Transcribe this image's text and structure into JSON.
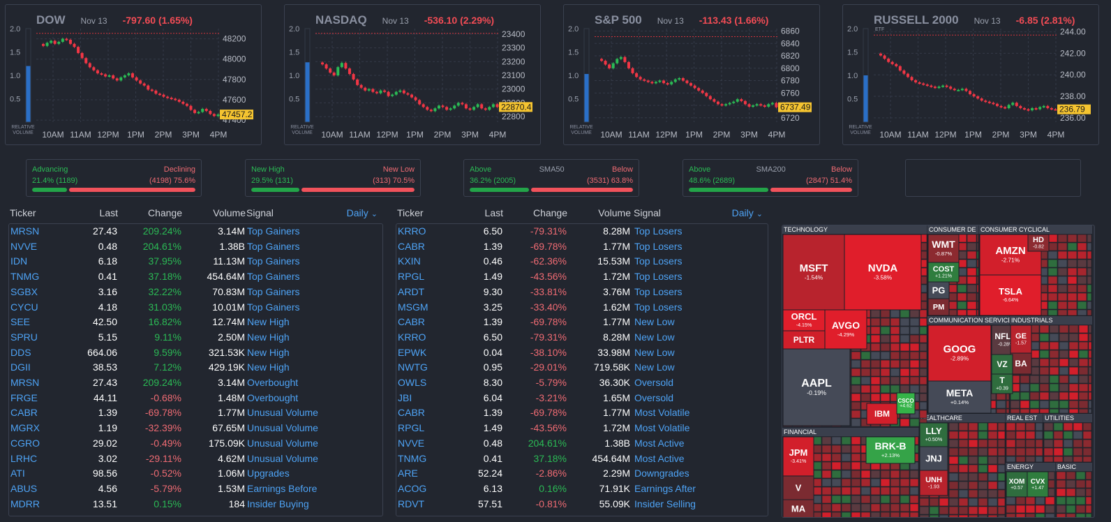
{
  "indices": [
    {
      "name": "DOW",
      "date": "Nov 13",
      "change": "-797.60 (1.65%)",
      "price_label": "47457.2",
      "etf": "",
      "y_ticks": [
        "48200",
        "48000",
        "47800",
        "47600",
        "47400"
      ],
      "rv_ticks": [
        "2.0",
        "1.5",
        "1.0",
        "0.5"
      ],
      "x_ticks": [
        "10AM",
        "11AM",
        "12PM",
        "1PM",
        "2PM",
        "3PM",
        "4PM"
      ],
      "rel_volume": "RELATIVE VOLUME",
      "ref_value": 48254,
      "rel_volume_value": 1.2,
      "range": [
        47380,
        48300
      ],
      "series": [
        48130,
        48160,
        48180,
        48150,
        48170,
        48200,
        48190,
        48150,
        48120,
        48060,
        48010,
        47960,
        47920,
        47890,
        47860,
        47850,
        47830,
        47840,
        47810,
        47790,
        47820,
        47840,
        47860,
        47820,
        47790,
        47760,
        47740,
        47700,
        47690,
        47660,
        47650,
        47630,
        47620,
        47610,
        47600,
        47580,
        47560,
        47540,
        47500,
        47470,
        47480,
        47510,
        47490,
        47460,
        47440,
        47455
      ]
    },
    {
      "name": "NASDAQ",
      "date": "Nov 13",
      "change": "-536.10 (2.29%)",
      "price_label": "22870.4",
      "etf": "",
      "y_ticks": [
        "23400",
        "23300",
        "23200",
        "23100",
        "23000",
        "22900",
        "22800"
      ],
      "rv_ticks": [
        "2.0",
        "1.5",
        "1.0",
        "0.5"
      ],
      "x_ticks": [
        "10AM",
        "11AM",
        "12PM",
        "1PM",
        "2PM",
        "3PM",
        "4PM"
      ],
      "rel_volume": "RELATIVE VOLUME",
      "ref_value": 23406,
      "rel_volume_value": 1.28,
      "range": [
        22760,
        23440
      ],
      "series": [
        23180,
        23150,
        23120,
        23100,
        23160,
        23190,
        23150,
        23110,
        23070,
        23030,
        23010,
        22990,
        23000,
        22980,
        22970,
        22990,
        22980,
        22950,
        22960,
        22980,
        22990,
        22970,
        22960,
        22940,
        22920,
        22890,
        22870,
        22850,
        22840,
        22860,
        22880,
        22870,
        22850,
        22860,
        22880,
        22900,
        22890,
        22860,
        22850,
        22870,
        22890,
        22860,
        22850,
        22870,
        22890,
        22870
      ]
    },
    {
      "name": "S&P 500",
      "date": "Nov 13",
      "change": "-113.43 (1.66%)",
      "price_label": "6737.49",
      "etf": "",
      "y_ticks": [
        "6860",
        "6840",
        "6820",
        "6800",
        "6780",
        "6760",
        "6740",
        "6720"
      ],
      "rv_ticks": [
        "2.0",
        "1.5",
        "1.0",
        "0.5"
      ],
      "x_ticks": [
        "10AM",
        "11AM",
        "12PM",
        "1PM",
        "2PM",
        "3PM",
        "4PM"
      ],
      "rel_volume": "RELATIVE VOLUME",
      "ref_value": 6851,
      "rel_volume_value": 1.03,
      "range": [
        6713,
        6864
      ],
      "series": [
        6812,
        6806,
        6800,
        6808,
        6815,
        6818,
        6810,
        6800,
        6792,
        6786,
        6782,
        6780,
        6778,
        6776,
        6778,
        6780,
        6776,
        6774,
        6778,
        6782,
        6784,
        6780,
        6776,
        6772,
        6768,
        6764,
        6760,
        6755,
        6750,
        6746,
        6742,
        6740,
        6742,
        6744,
        6746,
        6750,
        6747,
        6742,
        6738,
        6740,
        6742,
        6740,
        6738,
        6742,
        6744,
        6737
      ]
    },
    {
      "name": "RUSSELL 2000",
      "date": "Nov 13",
      "change": "-6.85 (2.81%)",
      "price_label": "236.79",
      "etf": "ETF",
      "y_ticks": [
        "244.00",
        "242.00",
        "240.00",
        "238.00",
        "236.00"
      ],
      "rv_ticks": [
        "2.0",
        "1.5",
        "1.0",
        "0.5"
      ],
      "x_ticks": [
        "10AM",
        "11AM",
        "12PM",
        "1PM",
        "2PM",
        "3PM",
        "4PM"
      ],
      "rel_volume": "RELATIVE VOLUME",
      "ref_value": 243.7,
      "rel_volume_value": 1.0,
      "range": [
        235.6,
        244.3
      ],
      "series": [
        241.8,
        241.5,
        241.2,
        241.0,
        240.8,
        240.4,
        240.1,
        239.8,
        239.5,
        239.3,
        239.2,
        239.1,
        239.0,
        238.9,
        238.8,
        238.9,
        239.0,
        238.9,
        238.7,
        238.6,
        238.6,
        238.7,
        238.5,
        238.2,
        238.0,
        237.8,
        237.6,
        237.5,
        237.4,
        237.3,
        237.1,
        237.0,
        236.9,
        237.2,
        237.4,
        237.1,
        236.9,
        236.8,
        236.7,
        236.9,
        236.8,
        237.0,
        237.1,
        236.9,
        236.8,
        236.79
      ]
    }
  ],
  "breadth": [
    {
      "left_label": "Advancing",
      "mid_label": "",
      "right_label": "Declining",
      "left_value": "21.4% (1189)",
      "right_value": "(4198) 75.6%",
      "pct": 21.4
    },
    {
      "left_label": "New High",
      "mid_label": "",
      "right_label": "New Low",
      "left_value": "29.5% (131)",
      "right_value": "(313) 70.5%",
      "pct": 29.5
    },
    {
      "left_label": "Above",
      "mid_label": "SMA50",
      "right_label": "Below",
      "left_value": "36.2% (2005)",
      "right_value": "(3531) 63.8%",
      "pct": 36.2
    },
    {
      "left_label": "Above",
      "mid_label": "SMA200",
      "right_label": "Below",
      "left_value": "48.6% (2689)",
      "right_value": "(2847) 51.4%",
      "pct": 48.6
    }
  ],
  "table_headers": {
    "ticker": "Ticker",
    "last": "Last",
    "change": "Change",
    "volume": "Volume",
    "signal": "Signal",
    "period": "Daily"
  },
  "left_table": [
    {
      "ticker": "MRSN",
      "last": "27.43",
      "change": "209.24%",
      "volume": "3.14M",
      "signal": "Top Gainers",
      "up": true
    },
    {
      "ticker": "NVVE",
      "last": "0.48",
      "change": "204.61%",
      "volume": "1.38B",
      "signal": "Top Gainers",
      "up": true
    },
    {
      "ticker": "IDN",
      "last": "6.18",
      "change": "37.95%",
      "volume": "11.13M",
      "signal": "Top Gainers",
      "up": true
    },
    {
      "ticker": "TNMG",
      "last": "0.41",
      "change": "37.18%",
      "volume": "454.64M",
      "signal": "Top Gainers",
      "up": true
    },
    {
      "ticker": "SGBX",
      "last": "3.16",
      "change": "32.22%",
      "volume": "70.83M",
      "signal": "Top Gainers",
      "up": true
    },
    {
      "ticker": "CYCU",
      "last": "4.18",
      "change": "31.03%",
      "volume": "10.01M",
      "signal": "Top Gainers",
      "up": true
    },
    {
      "ticker": "SEE",
      "last": "42.50",
      "change": "16.82%",
      "volume": "12.74M",
      "signal": "New High",
      "up": true
    },
    {
      "ticker": "SPRU",
      "last": "5.15",
      "change": "9.11%",
      "volume": "2.50M",
      "signal": "New High",
      "up": true
    },
    {
      "ticker": "DDS",
      "last": "664.06",
      "change": "9.59%",
      "volume": "321.53K",
      "signal": "New High",
      "up": true
    },
    {
      "ticker": "DGII",
      "last": "38.53",
      "change": "7.12%",
      "volume": "429.19K",
      "signal": "New High",
      "up": true
    },
    {
      "ticker": "MRSN",
      "last": "27.43",
      "change": "209.24%",
      "volume": "3.14M",
      "signal": "Overbought",
      "up": true
    },
    {
      "ticker": "FRGE",
      "last": "44.11",
      "change": "-0.68%",
      "volume": "1.48M",
      "signal": "Overbought",
      "up": false
    },
    {
      "ticker": "CABR",
      "last": "1.39",
      "change": "-69.78%",
      "volume": "1.77M",
      "signal": "Unusual Volume",
      "up": false
    },
    {
      "ticker": "MGRX",
      "last": "1.19",
      "change": "-32.39%",
      "volume": "67.65M",
      "signal": "Unusual Volume",
      "up": false
    },
    {
      "ticker": "CGRO",
      "last": "29.02",
      "change": "-0.49%",
      "volume": "175.09K",
      "signal": "Unusual Volume",
      "up": false
    },
    {
      "ticker": "LRHC",
      "last": "3.02",
      "change": "-29.11%",
      "volume": "4.62M",
      "signal": "Unusual Volume",
      "up": false
    },
    {
      "ticker": "ATI",
      "last": "98.56",
      "change": "-0.52%",
      "volume": "1.06M",
      "signal": "Upgrades",
      "up": false
    },
    {
      "ticker": "ABUS",
      "last": "4.56",
      "change": "-5.79%",
      "volume": "1.53M",
      "signal": "Earnings Before",
      "up": false
    },
    {
      "ticker": "MDRR",
      "last": "13.51",
      "change": "0.15%",
      "volume": "184",
      "signal": "Insider Buying",
      "up": true
    }
  ],
  "right_table": [
    {
      "ticker": "KRRO",
      "last": "6.50",
      "change": "-79.31%",
      "volume": "8.28M",
      "signal": "Top Losers",
      "up": false
    },
    {
      "ticker": "CABR",
      "last": "1.39",
      "change": "-69.78%",
      "volume": "1.77M",
      "signal": "Top Losers",
      "up": false
    },
    {
      "ticker": "KXIN",
      "last": "0.46",
      "change": "-62.36%",
      "volume": "15.53M",
      "signal": "Top Losers",
      "up": false
    },
    {
      "ticker": "RPGL",
      "last": "1.49",
      "change": "-43.56%",
      "volume": "1.72M",
      "signal": "Top Losers",
      "up": false
    },
    {
      "ticker": "ARDT",
      "last": "9.30",
      "change": "-33.81%",
      "volume": "3.76M",
      "signal": "Top Losers",
      "up": false
    },
    {
      "ticker": "MSGM",
      "last": "3.25",
      "change": "-33.40%",
      "volume": "1.62M",
      "signal": "Top Losers",
      "up": false
    },
    {
      "ticker": "CABR",
      "last": "1.39",
      "change": "-69.78%",
      "volume": "1.77M",
      "signal": "New Low",
      "up": false
    },
    {
      "ticker": "KRRO",
      "last": "6.50",
      "change": "-79.31%",
      "volume": "8.28M",
      "signal": "New Low",
      "up": false
    },
    {
      "ticker": "EPWK",
      "last": "0.04",
      "change": "-38.10%",
      "volume": "33.98M",
      "signal": "New Low",
      "up": false
    },
    {
      "ticker": "NWTG",
      "last": "0.95",
      "change": "-29.01%",
      "volume": "719.58K",
      "signal": "New Low",
      "up": false
    },
    {
      "ticker": "OWLS",
      "last": "8.30",
      "change": "-5.79%",
      "volume": "36.30K",
      "signal": "Oversold",
      "up": false
    },
    {
      "ticker": "JBI",
      "last": "6.04",
      "change": "-3.21%",
      "volume": "1.65M",
      "signal": "Oversold",
      "up": false
    },
    {
      "ticker": "CABR",
      "last": "1.39",
      "change": "-69.78%",
      "volume": "1.77M",
      "signal": "Most Volatile",
      "up": false
    },
    {
      "ticker": "RPGL",
      "last": "1.49",
      "change": "-43.56%",
      "volume": "1.72M",
      "signal": "Most Volatile",
      "up": false
    },
    {
      "ticker": "NVVE",
      "last": "0.48",
      "change": "204.61%",
      "volume": "1.38B",
      "signal": "Most Active",
      "up": true
    },
    {
      "ticker": "TNMG",
      "last": "0.41",
      "change": "37.18%",
      "volume": "454.64M",
      "signal": "Most Active",
      "up": true
    },
    {
      "ticker": "ARE",
      "last": "52.24",
      "change": "-2.86%",
      "volume": "2.29M",
      "signal": "Downgrades",
      "up": false
    },
    {
      "ticker": "ACOG",
      "last": "6.13",
      "change": "0.16%",
      "volume": "71.91K",
      "signal": "Earnings After",
      "up": true
    },
    {
      "ticker": "RDVT",
      "last": "57.51",
      "change": "-0.81%",
      "volume": "55.09K",
      "signal": "Insider Selling",
      "up": false
    }
  ],
  "heatmap": {
    "sectors": [
      {
        "name": "TECHNOLOGY"
      },
      {
        "name": "CONSUMER DE"
      },
      {
        "name": "CONSUMER CYCLICAL"
      },
      {
        "name": "COMMUNICATION SERVICES"
      },
      {
        "name": "INDUSTRIALS"
      },
      {
        "name": "FINANCIAL"
      },
      {
        "name": "HEALTHCARE"
      },
      {
        "name": "REAL EST"
      },
      {
        "name": "UTILITIES"
      },
      {
        "name": "ENERGY"
      },
      {
        "name": "BASIC"
      }
    ],
    "tiles": [
      {
        "t": "MSFT",
        "c": "-1.54%",
        "col": "#b8232d"
      },
      {
        "t": "NVDA",
        "c": "-3.58%",
        "col": "#e01e2b"
      },
      {
        "t": "ORCL",
        "c": "-4.15%",
        "col": "#e01e2b"
      },
      {
        "t": "PLTR",
        "c": "",
        "col": "#d01f2a"
      },
      {
        "t": "AVGO",
        "c": "-4.29%",
        "col": "#e01e2b"
      },
      {
        "t": "AAPL",
        "c": "-0.19%",
        "col": "#454a57"
      },
      {
        "t": "WMT",
        "c": "-0.87%",
        "col": "#8c2a30"
      },
      {
        "t": "COST",
        "c": "+1.21%",
        "col": "#2f7d3e"
      },
      {
        "t": "PG",
        "c": "",
        "col": "#454a57"
      },
      {
        "t": "PM",
        "c": "",
        "col": "#7b2b31"
      },
      {
        "t": "AMZN",
        "c": "-2.71%",
        "col": "#d21f2b"
      },
      {
        "t": "TSLA",
        "c": "-6.64%",
        "col": "#e01e2b"
      },
      {
        "t": "GOOG",
        "c": "-2.89%",
        "col": "#d21f2b"
      },
      {
        "t": "META",
        "c": "+0.14%",
        "col": "#454a57"
      },
      {
        "t": "NFLX",
        "c": "-0.28%",
        "col": "#5a3a40"
      },
      {
        "t": "JPM",
        "c": "-3.41%",
        "col": "#d21f2b"
      },
      {
        "t": "BRK-B",
        "c": "+2.13%",
        "col": "#35a348"
      },
      {
        "t": "V",
        "c": "",
        "col": "#7b2b31"
      },
      {
        "t": "MA",
        "c": "",
        "col": "#7b2b31"
      },
      {
        "t": "LLY",
        "c": "+0.50%",
        "col": "#2f6d3e"
      },
      {
        "t": "JNJ",
        "c": "",
        "col": "#454a57"
      },
      {
        "t": "UNH",
        "c": "-1.93",
        "col": "#b8232d"
      },
      {
        "t": "IBM",
        "c": "",
        "col": "#d21f2b"
      },
      {
        "t": "GE",
        "c": "-1.57",
        "col": "#b8232d"
      },
      {
        "t": "BA",
        "c": "",
        "col": "#7b2b31"
      },
      {
        "t": "HD",
        "c": "-0.82",
        "col": "#8c2a30"
      },
      {
        "t": "XOM",
        "c": "+0.57",
        "col": "#2f6d3e"
      },
      {
        "t": "CVX",
        "c": "+1.47",
        "col": "#2f7d3e"
      },
      {
        "t": "VZ",
        "c": "",
        "col": "#2f6d3e"
      },
      {
        "t": "T",
        "c": "+0.39",
        "col": "#2f6d3e"
      },
      {
        "t": "CSCO",
        "c": "+4.62",
        "col": "#35b348"
      }
    ]
  }
}
